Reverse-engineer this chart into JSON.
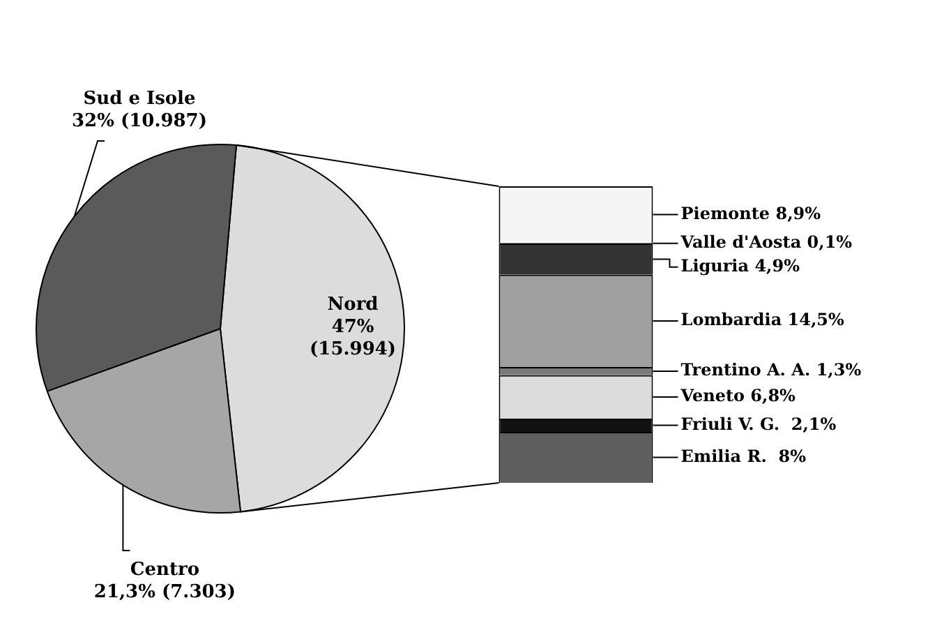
{
  "chart_data": [
    {
      "type": "pie",
      "categories": [
        "Nord",
        "Centro",
        "Sud e Isole"
      ],
      "values": [
        47,
        21.3,
        32
      ],
      "colors": [
        "#dcdcdc",
        "#a6a6a6",
        "#5a5a5a"
      ],
      "value_labels": [
        "47% (15.994)",
        "21,3% (7.303)",
        "32% (10.987)"
      ]
    },
    {
      "type": "bar",
      "stacked": true,
      "categories": [
        null
      ],
      "series": [
        {
          "color": "#5f5f5f",
          "values": [
            8
          ],
          "value_labels": [
            "Emilia R.  8%"
          ]
        },
        {
          "color": "#111111",
          "values": [
            2.1
          ],
          "value_labels": [
            "Friuli V. G.  2,1%"
          ]
        },
        {
          "color": "#dcdcdc",
          "values": [
            6.8
          ],
          "value_labels": [
            "Veneto 6,8%"
          ]
        },
        {
          "color": "#7a7a7a",
          "values": [
            1.3
          ],
          "value_labels": [
            "Trentino A. A. 1,3%"
          ]
        },
        {
          "color": "#a0a0a0",
          "values": [
            14.5
          ],
          "value_labels": [
            "Lombardia 14,5%"
          ]
        },
        {
          "color": "#333333",
          "values": [
            4.9
          ],
          "value_labels": [
            "Liguria 4,9%"
          ]
        },
        {
          "color": "#111111",
          "values": [
            0.1
          ],
          "value_labels": [
            "Valle d'Aosta 0,1%"
          ]
        },
        {
          "color": "#f5f5f5",
          "values": [
            8.9
          ],
          "value_labels": [
            "Piemonte 8,9%"
          ]
        }
      ]
    }
  ]
}
